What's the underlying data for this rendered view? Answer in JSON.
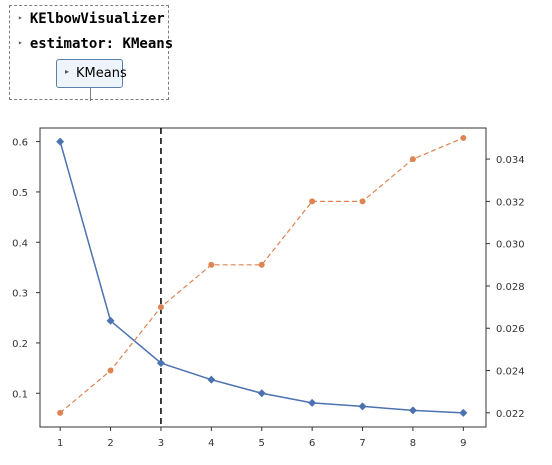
{
  "estimator": {
    "visualizer_label": "KElbowVisualizer",
    "estimator_label": "estimator: KMeans",
    "model_label": "KMeans",
    "arrow_glyph": "▸"
  },
  "chart_data": {
    "type": "line",
    "x": [
      1,
      2,
      3,
      4,
      5,
      6,
      7,
      8,
      9
    ],
    "xticks": [
      "1",
      "2",
      "3",
      "4",
      "5",
      "6",
      "7",
      "8",
      "9"
    ],
    "xlim": [
      0.6,
      9.45
    ],
    "y_left": {
      "ticks": [
        "0.1",
        "0.2",
        "0.3",
        "0.4",
        "0.5",
        "0.6"
      ],
      "tick_values": [
        0.1,
        0.2,
        0.3,
        0.4,
        0.5,
        0.6
      ],
      "range": [
        0.033,
        0.627
      ]
    },
    "y_right": {
      "ticks": [
        "0.022",
        "0.024",
        "0.026",
        "0.028",
        "0.030",
        "0.032",
        "0.034"
      ],
      "tick_values": [
        0.022,
        0.024,
        0.026,
        0.028,
        0.03,
        0.032,
        0.034
      ],
      "range": [
        0.02133,
        0.03547
      ]
    },
    "series": [
      {
        "axis": "left",
        "style": "solid",
        "marker": "diamond",
        "color": "#4c72b0",
        "values": [
          0.6,
          0.244,
          0.16,
          0.127,
          0.1,
          0.081,
          0.074,
          0.066,
          0.061
        ]
      },
      {
        "axis": "right",
        "style": "dashed",
        "marker": "circle",
        "color": "#dd8452",
        "values": [
          0.022,
          0.024,
          0.027,
          0.029,
          0.029,
          0.032,
          0.032,
          0.034,
          0.035
        ]
      }
    ],
    "elbow_x": 3,
    "elbow_color": "#000000",
    "grid": false,
    "legend": "none"
  }
}
